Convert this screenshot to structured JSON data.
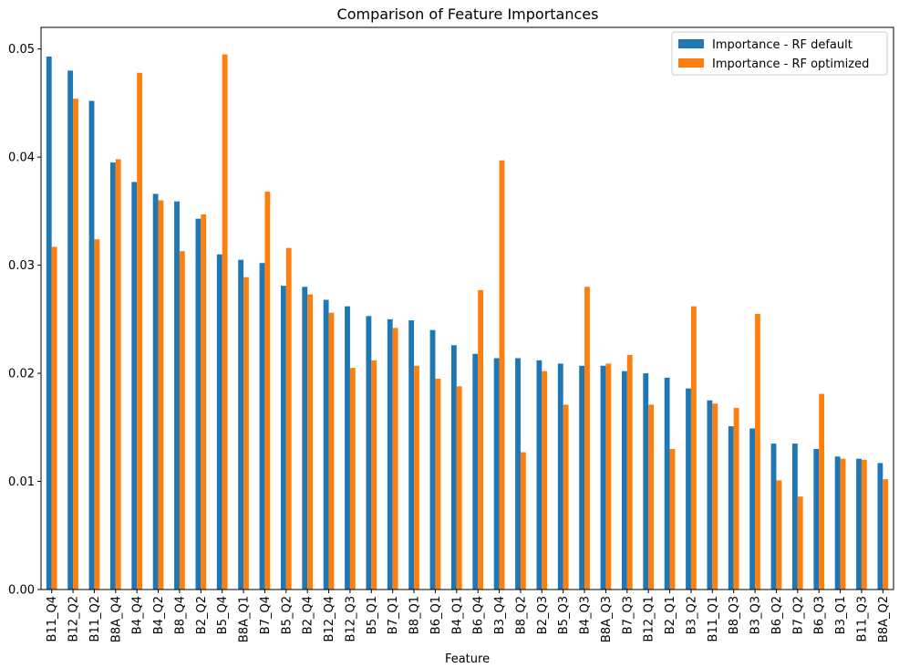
{
  "chart_data": {
    "type": "bar",
    "title": "Comparison of Feature Importances",
    "xlabel": "Feature",
    "ylabel": "",
    "ylim": [
      0,
      0.052
    ],
    "yticks": [
      "0.00",
      "0.01",
      "0.02",
      "0.03",
      "0.04",
      "0.05"
    ],
    "ytick_values": [
      0,
      0.01,
      0.02,
      0.03,
      0.04,
      0.05
    ],
    "legend_position": "top-right",
    "grid": false,
    "categories": [
      "B11_Q4",
      "B12_Q2",
      "B11_Q2",
      "B8A_Q4",
      "B4_Q4",
      "B4_Q2",
      "B8_Q4",
      "B2_Q2",
      "B5_Q4",
      "B8A_Q1",
      "B7_Q4",
      "B5_Q2",
      "B2_Q4",
      "B12_Q4",
      "B12_Q3",
      "B5_Q1",
      "B7_Q1",
      "B8_Q1",
      "B6_Q1",
      "B4_Q1",
      "B6_Q4",
      "B3_Q4",
      "B8_Q2",
      "B2_Q3",
      "B5_Q3",
      "B4_Q3",
      "B8A_Q3",
      "B7_Q3",
      "B12_Q1",
      "B2_Q1",
      "B3_Q2",
      "B11_Q1",
      "B8_Q3",
      "B3_Q3",
      "B6_Q2",
      "B7_Q2",
      "B6_Q3",
      "B3_Q1",
      "B11_Q3",
      "B8A_Q2"
    ],
    "series": [
      {
        "name": "Importance - RF default",
        "color": "#1f77b4",
        "values": [
          0.0493,
          0.048,
          0.0452,
          0.0395,
          0.0377,
          0.0366,
          0.0359,
          0.0343,
          0.031,
          0.0305,
          0.0302,
          0.0281,
          0.028,
          0.0268,
          0.0262,
          0.0253,
          0.025,
          0.0249,
          0.024,
          0.0226,
          0.0218,
          0.0214,
          0.0214,
          0.0212,
          0.0209,
          0.0207,
          0.0207,
          0.0202,
          0.02,
          0.0196,
          0.0186,
          0.0175,
          0.0151,
          0.0149,
          0.0135,
          0.0135,
          0.013,
          0.0123,
          0.0121,
          0.0117
        ]
      },
      {
        "name": "Importance - RF optimized",
        "color": "#ff7f0e",
        "values": [
          0.0317,
          0.0454,
          0.0324,
          0.0398,
          0.0478,
          0.036,
          0.0313,
          0.0347,
          0.0495,
          0.0289,
          0.0368,
          0.0316,
          0.0273,
          0.0256,
          0.0205,
          0.0212,
          0.0242,
          0.0207,
          0.0195,
          0.0188,
          0.0277,
          0.0397,
          0.0127,
          0.0202,
          0.0171,
          0.028,
          0.0209,
          0.0217,
          0.0171,
          0.013,
          0.0262,
          0.0172,
          0.0168,
          0.0255,
          0.0101,
          0.0086,
          0.0181,
          0.0121,
          0.012,
          0.0102
        ]
      }
    ]
  }
}
